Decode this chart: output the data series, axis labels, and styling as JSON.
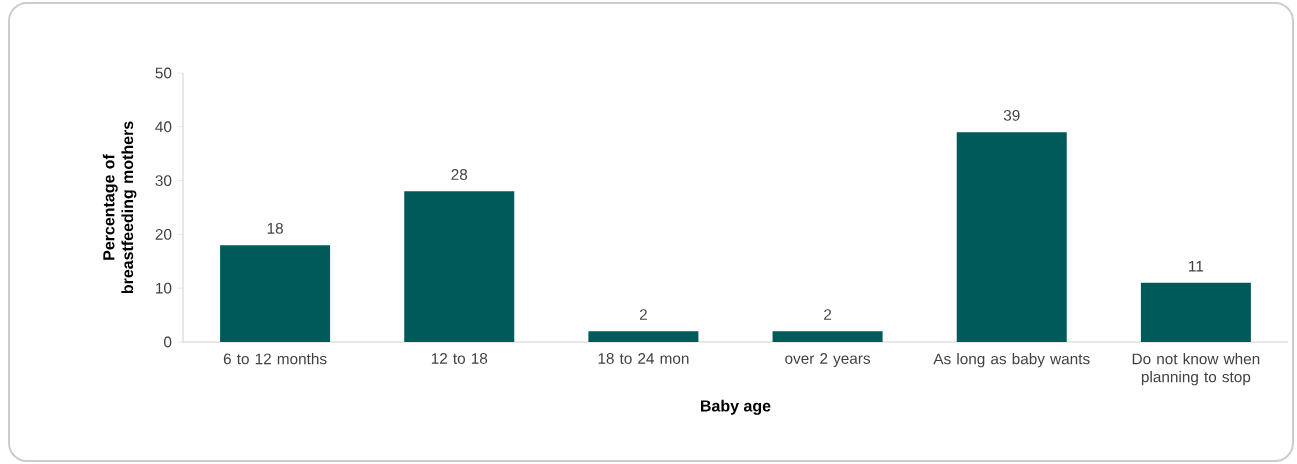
{
  "chart_data": {
    "type": "bar",
    "xlabel": "Baby age",
    "ylabel": "Percentage of breastfeeding mothers",
    "categories": [
      "6 to 12 months",
      "12 to 18",
      "18 to 24 mon",
      "over 2 years",
      "As long as baby wants",
      "Do not know when planning to stop"
    ],
    "values": [
      18,
      28,
      2,
      2,
      39,
      11
    ],
    "color": "#005a5a",
    "data_labels": true,
    "ylim": [
      0,
      50
    ],
    "yticks": [
      0,
      10,
      20,
      30,
      40,
      50
    ],
    "grid": false
  }
}
